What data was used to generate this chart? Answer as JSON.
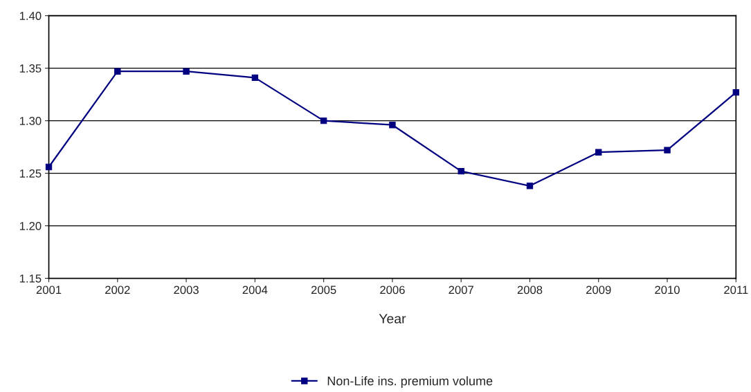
{
  "chart_data": {
    "type": "line",
    "xlabel": "Year",
    "x": [
      2001,
      2002,
      2003,
      2004,
      2005,
      2006,
      2007,
      2008,
      2009,
      2010,
      2011
    ],
    "series": [
      {
        "name": "Non-Life ins. premium volume",
        "color": "#000080",
        "values": [
          1.256,
          1.347,
          1.347,
          1.341,
          1.3,
          1.296,
          1.252,
          1.238,
          1.27,
          1.272,
          1.327
        ]
      }
    ],
    "xlim": [
      2001,
      2011
    ],
    "xticks": [
      2001,
      2002,
      2003,
      2004,
      2005,
      2006,
      2007,
      2008,
      2009,
      2010,
      2011
    ],
    "ylim": [
      1.15,
      1.4
    ],
    "yticks": [
      {
        "value": 1.15,
        "label": "1.15"
      },
      {
        "value": 1.2,
        "label": "1.20"
      },
      {
        "value": 1.25,
        "label": "1.25"
      },
      {
        "value": 1.3,
        "label": "1.30"
      },
      {
        "value": 1.35,
        "label": "1.35"
      },
      {
        "value": 1.4,
        "label": "1.40"
      }
    ],
    "grid": "y",
    "legend": "bottom",
    "marker": "square",
    "line_style": "solid"
  }
}
